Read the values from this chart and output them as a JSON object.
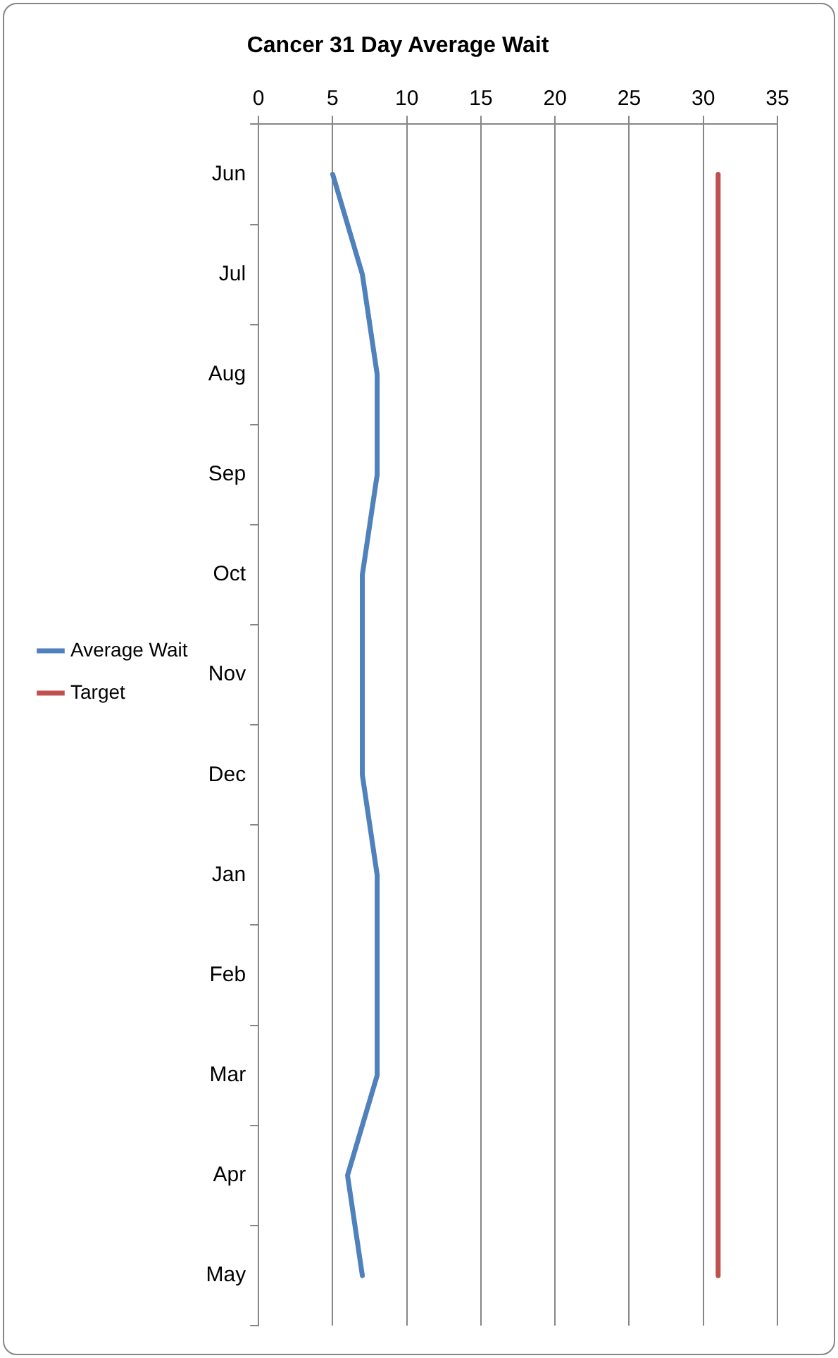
{
  "chart_data": {
    "type": "line",
    "title": "Cancer 31 Day Average Wait",
    "orientation": "horizontal",
    "categories": [
      "Jun",
      "Jul",
      "Aug",
      "Sep",
      "Oct",
      "Nov",
      "Dec",
      "Jan",
      "Feb",
      "Mar",
      "Apr",
      "May"
    ],
    "series": [
      {
        "name": "Average Wait",
        "color": "#4f81bd",
        "values": [
          5,
          7,
          8,
          8,
          7,
          7,
          7,
          8,
          8,
          8,
          6,
          7
        ]
      },
      {
        "name": "Target",
        "color": "#c0504d",
        "values": [
          31,
          31,
          31,
          31,
          31,
          31,
          31,
          31,
          31,
          31,
          31,
          31
        ]
      }
    ],
    "xlim": [
      0,
      35
    ],
    "xticks": [
      0,
      5,
      10,
      15,
      20,
      25,
      30,
      35
    ],
    "grid": "x",
    "legend": "left",
    "marker": "none",
    "line_style": "solid"
  }
}
